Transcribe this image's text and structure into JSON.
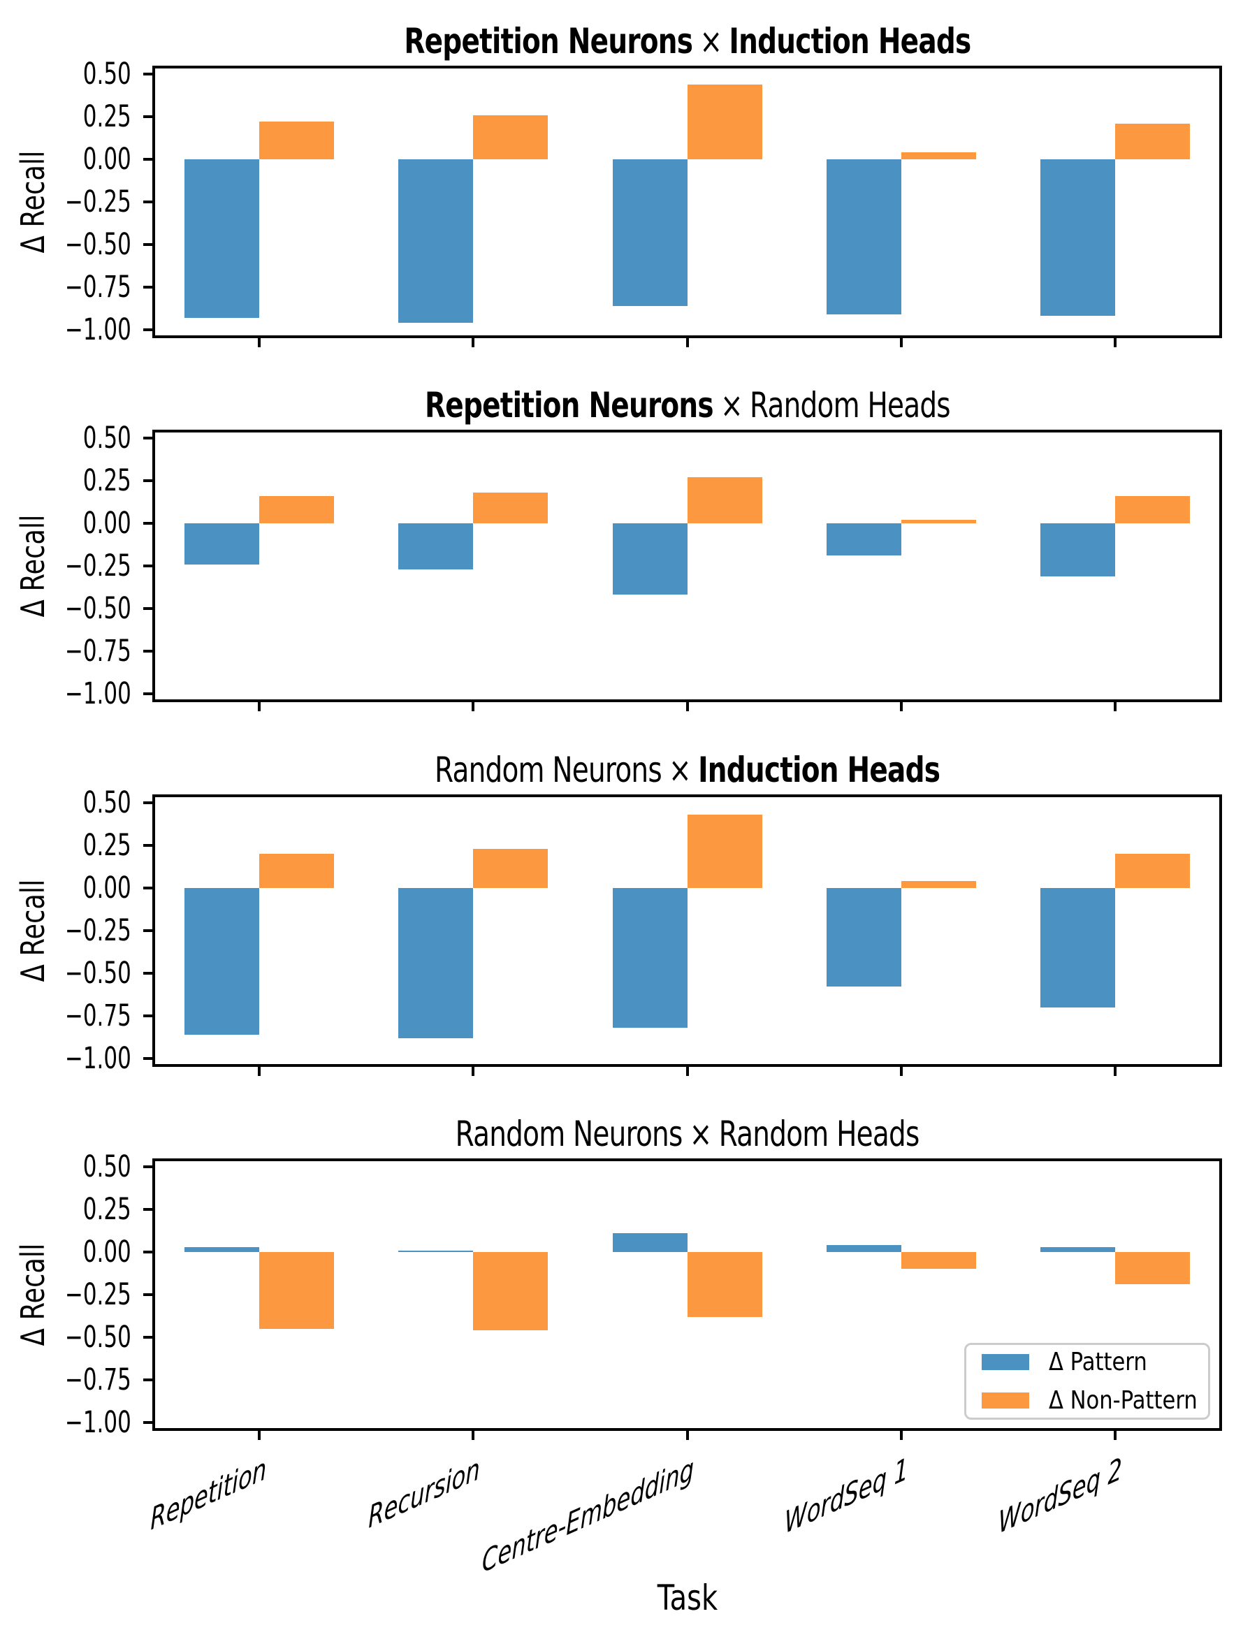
{
  "figure": {
    "xlabel": "Task",
    "ylabel": "Δ Recall",
    "categories": [
      "Repetition",
      "Recursion",
      "Centre-Embedding",
      "WordSeq 1",
      "WordSeq 2"
    ],
    "ytick_labels": [
      "0.50",
      "0.25",
      "0.00",
      "−0.25",
      "−0.50",
      "−0.75",
      "−1.00"
    ],
    "ytick_values": [
      0.5,
      0.25,
      0.0,
      -0.25,
      -0.5,
      -0.75,
      -1.0
    ],
    "colors": {
      "pattern": "#4B92C3",
      "non_pattern": "#FC9840",
      "frame": "#000000",
      "legend_border": "#cccccc"
    },
    "legend": {
      "position": "lower right of bottom panel",
      "items": [
        {
          "label": "Δ Pattern",
          "color_key": "pattern"
        },
        {
          "label": "Δ Non-Pattern",
          "color_key": "non_pattern"
        }
      ]
    }
  },
  "chart_data": [
    {
      "type": "bar",
      "title_parts": [
        {
          "text": "Repetition Neurons",
          "bold": true
        },
        {
          "text": "×",
          "bold": false
        },
        {
          "text": "Induction Heads",
          "bold": true
        }
      ],
      "categories": [
        "Repetition",
        "Recursion",
        "Centre-Embedding",
        "WordSeq 1",
        "WordSeq 2"
      ],
      "xlabel": "",
      "ylabel": "Δ Recall",
      "ylim": [
        -1.05,
        0.55
      ],
      "yticks": [
        0.5,
        0.25,
        0.0,
        -0.25,
        -0.5,
        -0.75,
        -1.0
      ],
      "grid": false,
      "series": [
        {
          "name": "Δ Pattern",
          "values": [
            -0.93,
            -0.96,
            -0.86,
            -0.91,
            -0.92
          ]
        },
        {
          "name": "Δ Non-Pattern",
          "values": [
            0.22,
            0.26,
            0.44,
            0.04,
            0.21
          ]
        }
      ]
    },
    {
      "type": "bar",
      "title_parts": [
        {
          "text": "Repetition Neurons",
          "bold": true
        },
        {
          "text": "×",
          "bold": false
        },
        {
          "text": "Random Heads",
          "bold": false
        }
      ],
      "categories": [
        "Repetition",
        "Recursion",
        "Centre-Embedding",
        "WordSeq 1",
        "WordSeq 2"
      ],
      "xlabel": "",
      "ylabel": "Δ Recall",
      "ylim": [
        -1.05,
        0.55
      ],
      "yticks": [
        0.5,
        0.25,
        0.0,
        -0.25,
        -0.5,
        -0.75,
        -1.0
      ],
      "grid": false,
      "series": [
        {
          "name": "Δ Pattern",
          "values": [
            -0.24,
            -0.27,
            -0.42,
            -0.19,
            -0.31
          ]
        },
        {
          "name": "Δ Non-Pattern",
          "values": [
            0.16,
            0.18,
            0.27,
            0.02,
            0.16
          ]
        }
      ]
    },
    {
      "type": "bar",
      "title_parts": [
        {
          "text": "Random Neurons",
          "bold": false
        },
        {
          "text": "×",
          "bold": false
        },
        {
          "text": "Induction Heads",
          "bold": true
        }
      ],
      "categories": [
        "Repetition",
        "Recursion",
        "Centre-Embedding",
        "WordSeq 1",
        "WordSeq 2"
      ],
      "xlabel": "",
      "ylabel": "Δ Recall",
      "ylim": [
        -1.05,
        0.55
      ],
      "yticks": [
        0.5,
        0.25,
        0.0,
        -0.25,
        -0.5,
        -0.75,
        -1.0
      ],
      "grid": false,
      "series": [
        {
          "name": "Δ Pattern",
          "values": [
            -0.86,
            -0.88,
            -0.82,
            -0.58,
            -0.7
          ]
        },
        {
          "name": "Δ Non-Pattern",
          "values": [
            0.2,
            0.23,
            0.43,
            0.04,
            0.2
          ]
        }
      ]
    },
    {
      "type": "bar",
      "title_parts": [
        {
          "text": "Random Neurons",
          "bold": false
        },
        {
          "text": "×",
          "bold": false
        },
        {
          "text": "Random Heads",
          "bold": false
        }
      ],
      "categories": [
        "Repetition",
        "Recursion",
        "Centre-Embedding",
        "WordSeq 1",
        "WordSeq 2"
      ],
      "xlabel": "Task",
      "ylabel": "Δ Recall",
      "ylim": [
        -1.05,
        0.55
      ],
      "yticks": [
        0.5,
        0.25,
        0.0,
        -0.25,
        -0.5,
        -0.75,
        -1.0
      ],
      "grid": false,
      "legend_visible": true,
      "series": [
        {
          "name": "Δ Pattern",
          "values": [
            0.03,
            0.01,
            0.11,
            0.04,
            0.03
          ]
        },
        {
          "name": "Δ Non-Pattern",
          "values": [
            -0.45,
            -0.46,
            -0.38,
            -0.1,
            -0.19
          ]
        }
      ]
    }
  ]
}
